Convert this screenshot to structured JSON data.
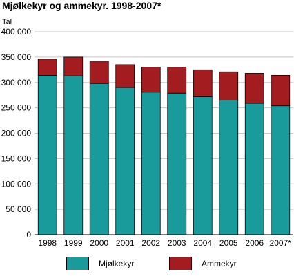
{
  "chart_data": {
    "type": "bar",
    "stacked": true,
    "title": "Mjølkekyr og ammekyr. 1998-2007*",
    "ylabel": "Tal",
    "xlabel": "",
    "categories": [
      "1998",
      "1999",
      "2000",
      "2001",
      "2002",
      "2003",
      "2004",
      "2005",
      "2006",
      "2007*"
    ],
    "series": [
      {
        "name": "Mjølkekyr",
        "color": "#1a9b9b",
        "values": [
          314000,
          313000,
          298000,
          290000,
          281000,
          279000,
          272000,
          265000,
          259000,
          254000
        ]
      },
      {
        "name": "Ammekyr",
        "color": "#a31c1f",
        "values": [
          32000,
          37000,
          44000,
          45000,
          49000,
          51000,
          53000,
          56000,
          59000,
          60000
        ]
      }
    ],
    "ylim": [
      0,
      400000
    ],
    "yticks": [
      0,
      50000,
      100000,
      150000,
      200000,
      250000,
      300000,
      350000,
      400000
    ],
    "ytick_labels": [
      "0",
      "50 000",
      "100 000",
      "150 000",
      "200 000",
      "250 000",
      "300 000",
      "350 000",
      "400 000"
    ],
    "grid": true,
    "legend_position": "bottom"
  }
}
